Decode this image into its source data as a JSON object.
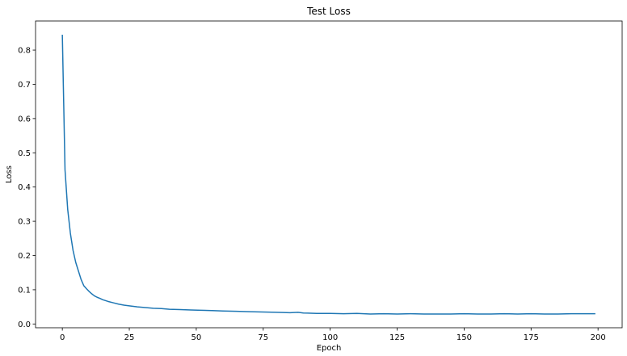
{
  "chart_data": {
    "type": "line",
    "title": "Test Loss",
    "xlabel": "Epoch",
    "ylabel": "Loss",
    "xlim": [
      -10,
      209
    ],
    "ylim": [
      -0.011,
      0.885
    ],
    "xticks": [
      0,
      25,
      50,
      75,
      100,
      125,
      150,
      175,
      200
    ],
    "yticks": [
      0.0,
      0.1,
      0.2,
      0.3,
      0.4,
      0.5,
      0.6,
      0.7,
      0.8
    ],
    "grid": false,
    "legend": "none",
    "series": [
      {
        "color": "#1f77b4",
        "x": [
          0,
          1,
          2,
          3,
          4,
          5,
          6,
          7,
          8,
          9,
          10,
          11,
          12,
          13,
          14,
          15,
          17,
          19,
          21,
          23,
          25,
          28,
          31,
          34,
          37,
          40,
          44,
          48,
          52,
          56,
          60,
          65,
          70,
          75,
          80,
          85,
          88,
          90,
          95,
          100,
          105,
          110,
          115,
          120,
          125,
          130,
          135,
          140,
          145,
          150,
          155,
          160,
          165,
          170,
          175,
          180,
          185,
          190,
          195,
          199
        ],
        "y": [
          0.845,
          0.45,
          0.335,
          0.265,
          0.215,
          0.18,
          0.155,
          0.13,
          0.112,
          0.103,
          0.095,
          0.088,
          0.082,
          0.078,
          0.075,
          0.071,
          0.066,
          0.062,
          0.058,
          0.055,
          0.053,
          0.05,
          0.048,
          0.046,
          0.045,
          0.043,
          0.042,
          0.041,
          0.04,
          0.039,
          0.038,
          0.037,
          0.036,
          0.035,
          0.034,
          0.033,
          0.034,
          0.032,
          0.031,
          0.031,
          0.03,
          0.031,
          0.029,
          0.03,
          0.029,
          0.03,
          0.029,
          0.029,
          0.029,
          0.03,
          0.029,
          0.029,
          0.03,
          0.029,
          0.03,
          0.029,
          0.029,
          0.03,
          0.03,
          0.03
        ]
      }
    ]
  }
}
